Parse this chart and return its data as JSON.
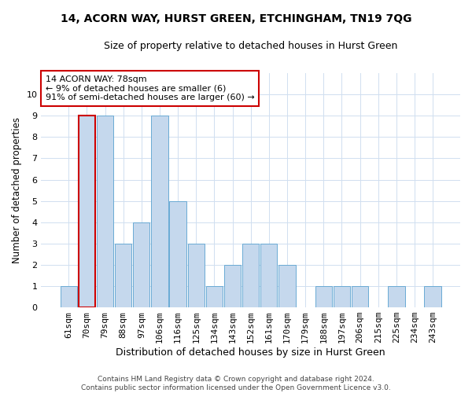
{
  "title": "14, ACORN WAY, HURST GREEN, ETCHINGHAM, TN19 7QG",
  "subtitle": "Size of property relative to detached houses in Hurst Green",
  "xlabel": "Distribution of detached houses by size in Hurst Green",
  "ylabel": "Number of detached properties",
  "categories": [
    "61sqm",
    "70sqm",
    "79sqm",
    "88sqm",
    "97sqm",
    "106sqm",
    "116sqm",
    "125sqm",
    "134sqm",
    "143sqm",
    "152sqm",
    "161sqm",
    "170sqm",
    "179sqm",
    "188sqm",
    "197sqm",
    "206sqm",
    "215sqm",
    "225sqm",
    "234sqm",
    "243sqm"
  ],
  "values": [
    1,
    9,
    9,
    3,
    4,
    9,
    5,
    3,
    1,
    2,
    3,
    3,
    2,
    0,
    1,
    1,
    1,
    0,
    1,
    0,
    1
  ],
  "bar_color": "#c5d8ed",
  "bar_edge_color": "#6aaad4",
  "highlight_bar_index": 1,
  "highlight_bar_edge_color": "#cc0000",
  "annotation_box_text": "14 ACORN WAY: 78sqm\n← 9% of detached houses are smaller (6)\n91% of semi-detached houses are larger (60) →",
  "annotation_box_edge_color": "#cc0000",
  "ylim": [
    0,
    11
  ],
  "yticks": [
    0,
    1,
    2,
    3,
    4,
    5,
    6,
    7,
    8,
    9,
    10
  ],
  "footer_line1": "Contains HM Land Registry data © Crown copyright and database right 2024.",
  "footer_line2": "Contains public sector information licensed under the Open Government Licence v3.0.",
  "background_color": "#ffffff",
  "grid_color": "#d0dff0"
}
